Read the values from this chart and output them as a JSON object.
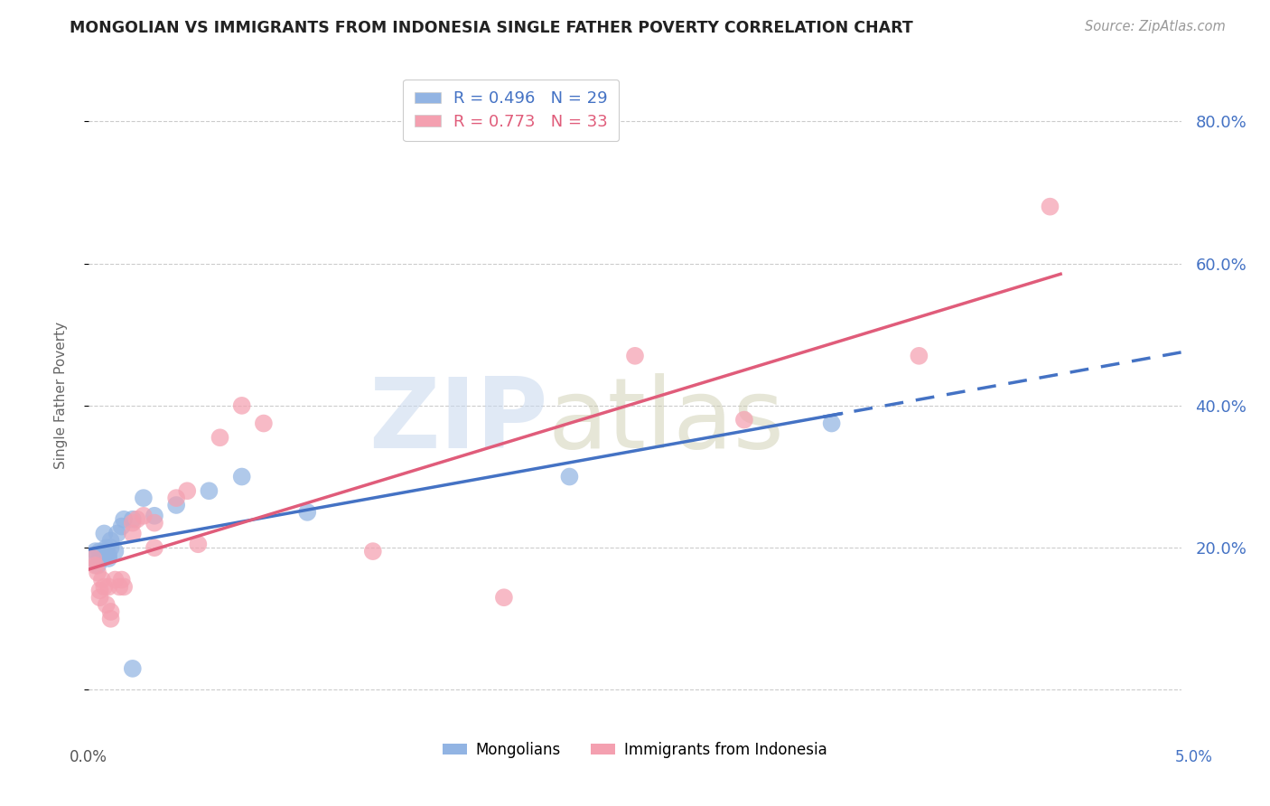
{
  "title": "MONGOLIAN VS IMMIGRANTS FROM INDONESIA SINGLE FATHER POVERTY CORRELATION CHART",
  "source": "Source: ZipAtlas.com",
  "ylabel": "Single Father Poverty",
  "xlim": [
    0.0,
    0.05
  ],
  "ylim": [
    -0.05,
    0.88
  ],
  "yticks": [
    0.0,
    0.2,
    0.4,
    0.6,
    0.8
  ],
  "ytick_labels": [
    "",
    "20.0%",
    "40.0%",
    "60.0%",
    "80.0%"
  ],
  "blue_color": "#92b4e3",
  "pink_color": "#f4a0b0",
  "blue_line_color": "#4472C4",
  "pink_line_color": "#E05C7A",
  "mongolian_x": [
    0.0002,
    0.0003,
    0.0004,
    0.0005,
    0.0005,
    0.0006,
    0.0006,
    0.0007,
    0.0007,
    0.0008,
    0.0008,
    0.0009,
    0.0009,
    0.001,
    0.001,
    0.0012,
    0.0013,
    0.0015,
    0.0016,
    0.002,
    0.002,
    0.0025,
    0.003,
    0.004,
    0.0055,
    0.007,
    0.01,
    0.022,
    0.034
  ],
  "mongolian_y": [
    0.185,
    0.195,
    0.175,
    0.185,
    0.195,
    0.185,
    0.19,
    0.22,
    0.195,
    0.2,
    0.19,
    0.185,
    0.19,
    0.2,
    0.21,
    0.195,
    0.22,
    0.23,
    0.24,
    0.24,
    0.03,
    0.27,
    0.245,
    0.26,
    0.28,
    0.3,
    0.25,
    0.3,
    0.375
  ],
  "indonesia_x": [
    0.0002,
    0.0003,
    0.0004,
    0.0005,
    0.0005,
    0.0006,
    0.0007,
    0.0008,
    0.0009,
    0.001,
    0.001,
    0.0012,
    0.0014,
    0.0015,
    0.0016,
    0.002,
    0.002,
    0.0022,
    0.0025,
    0.003,
    0.003,
    0.004,
    0.0045,
    0.005,
    0.006,
    0.007,
    0.008,
    0.013,
    0.019,
    0.025,
    0.03,
    0.038,
    0.044
  ],
  "indonesia_y": [
    0.185,
    0.175,
    0.165,
    0.14,
    0.13,
    0.155,
    0.145,
    0.12,
    0.145,
    0.11,
    0.1,
    0.155,
    0.145,
    0.155,
    0.145,
    0.22,
    0.235,
    0.24,
    0.245,
    0.2,
    0.235,
    0.27,
    0.28,
    0.205,
    0.355,
    0.4,
    0.375,
    0.195,
    0.13,
    0.47,
    0.38,
    0.47,
    0.68
  ]
}
